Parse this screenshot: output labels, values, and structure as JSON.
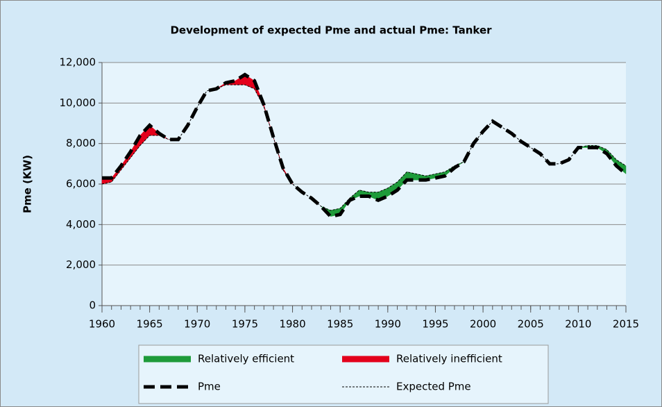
{
  "chart_data": {
    "type": "line",
    "title": "Development of expected Pme and actual Pme: Tanker",
    "y_label": "Pme (KW)",
    "x": [
      1960,
      1961,
      1962,
      1963,
      1964,
      1965,
      1966,
      1967,
      1968,
      1969,
      1970,
      1971,
      1972,
      1973,
      1974,
      1975,
      1976,
      1977,
      1978,
      1979,
      1980,
      1981,
      1982,
      1983,
      1984,
      1985,
      1986,
      1987,
      1988,
      1989,
      1990,
      1991,
      1992,
      1993,
      1994,
      1995,
      1996,
      1997,
      1998,
      1999,
      2000,
      2001,
      2002,
      2003,
      2004,
      2005,
      2006,
      2007,
      2008,
      2009,
      2010,
      2011,
      2012,
      2013,
      2014,
      2015
    ],
    "series": [
      {
        "name": "Pme",
        "color": "#000000",
        "style": "dashed-thick",
        "values": [
          6300,
          6300,
          6900,
          7600,
          8400,
          8900,
          8500,
          8200,
          8200,
          8900,
          9800,
          10600,
          10700,
          11000,
          11100,
          11400,
          11100,
          9900,
          8300,
          6800,
          6000,
          5600,
          5300,
          4900,
          4400,
          4500,
          5200,
          5400,
          5400,
          5200,
          5400,
          5700,
          6200,
          6200,
          6200,
          6300,
          6400,
          6800,
          7100,
          8000,
          8600,
          9100,
          8800,
          8500,
          8100,
          7800,
          7500,
          7000,
          7000,
          7200,
          7800,
          7800,
          7800,
          7500,
          6900,
          6500
        ]
      },
      {
        "name": "Expected Pme",
        "color": "#000000",
        "style": "dashed-thin",
        "values": [
          6000,
          6100,
          6700,
          7300,
          7900,
          8400,
          8400,
          8200,
          8200,
          8900,
          9800,
          10600,
          10700,
          10900,
          10900,
          10900,
          10700,
          9800,
          8300,
          6700,
          6000,
          5600,
          5300,
          4900,
          4700,
          4800,
          5300,
          5700,
          5600,
          5600,
          5800,
          6100,
          6600,
          6500,
          6400,
          6500,
          6600,
          6900,
          7100,
          8000,
          8600,
          9100,
          8800,
          8500,
          8100,
          7800,
          7500,
          7000,
          7000,
          7200,
          7800,
          7900,
          7900,
          7700,
          7200,
          6900
        ]
      }
    ],
    "fills": [
      {
        "name": "Relatively efficient",
        "color": "#1e9b3a"
      },
      {
        "name": "Relatively inefficient",
        "color": "#e3001b"
      }
    ],
    "xlim": [
      1960,
      2015
    ],
    "xticks": [
      1960,
      1965,
      1970,
      1975,
      1980,
      1985,
      1990,
      1995,
      2000,
      2005,
      2010,
      2015
    ],
    "ylim": [
      0,
      12000
    ],
    "yticks": [
      0,
      {
        "value": 2000,
        "label": "2,000"
      },
      {
        "value": 4000,
        "label": "4,000"
      },
      {
        "value": 6000,
        "label": "6,000"
      },
      {
        "value": 8000,
        "label": "8,000"
      },
      {
        "value": 10000,
        "label": "10,000"
      },
      {
        "value": 12000,
        "label": "12,000"
      }
    ],
    "grid": true
  }
}
